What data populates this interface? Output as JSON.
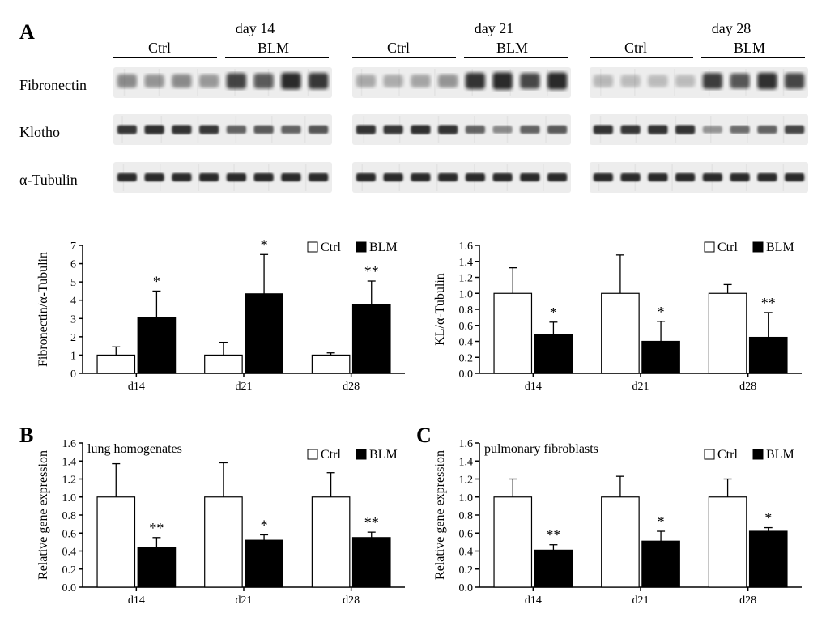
{
  "panelA": {
    "letter": "A",
    "days": [
      "day 14",
      "day 21",
      "day 28"
    ],
    "conditions": [
      "Ctrl",
      "BLM"
    ],
    "row_labels": [
      "Fibronectin",
      "Klotho",
      "α-Tubulin"
    ],
    "blot_colors": {
      "band": "#2b2b2b",
      "membrane": "#ededed",
      "streak": "#9a9a9a"
    },
    "chart_left": {
      "type": "bar",
      "ylabel": "Fibronectin/α-Tubulin",
      "ylim": [
        0,
        7
      ],
      "ytick_step": 1,
      "categories": [
        "d14",
        "d21",
        "d28"
      ],
      "legend": {
        "items": [
          "Ctrl",
          "BLM"
        ],
        "colors": [
          "#ffffff",
          "#000000"
        ]
      },
      "series": {
        "Ctrl": {
          "values": [
            1.0,
            1.0,
            1.0
          ],
          "errors": [
            0.45,
            0.7,
            0.12
          ],
          "color": "#ffffff"
        },
        "BLM": {
          "values": [
            3.05,
            4.35,
            3.75
          ],
          "errors": [
            1.45,
            2.15,
            1.3
          ],
          "color": "#000000",
          "sig": [
            "*",
            "*",
            "**"
          ]
        }
      },
      "bar_width": 0.35,
      "colors": {
        "axis": "#000000",
        "bg": "#ffffff"
      },
      "fontsize": {
        "tick": 14,
        "ylabel": 16,
        "sig": 18
      }
    },
    "chart_right": {
      "type": "bar",
      "ylabel": "KL/α-Tubulin",
      "ylim": [
        0,
        1.6
      ],
      "ytick_step": 0.2,
      "categories": [
        "d14",
        "d21",
        "d28"
      ],
      "legend": {
        "items": [
          "Ctrl",
          "BLM"
        ],
        "colors": [
          "#ffffff",
          "#000000"
        ]
      },
      "series": {
        "Ctrl": {
          "values": [
            1.0,
            1.0,
            1.0
          ],
          "errors": [
            0.32,
            0.48,
            0.11
          ],
          "color": "#ffffff"
        },
        "BLM": {
          "values": [
            0.48,
            0.4,
            0.45
          ],
          "errors": [
            0.16,
            0.25,
            0.31
          ],
          "color": "#000000",
          "sig": [
            "*",
            "*",
            "**"
          ]
        }
      },
      "bar_width": 0.35,
      "colors": {
        "axis": "#000000",
        "bg": "#ffffff"
      },
      "fontsize": {
        "tick": 14,
        "ylabel": 16,
        "sig": 18
      }
    }
  },
  "panelB": {
    "letter": "B",
    "subtitle": "lung homogenates",
    "type": "bar",
    "ylabel": "Relative gene expression",
    "ylim": [
      0,
      1.6
    ],
    "ytick_step": 0.2,
    "categories": [
      "d14",
      "d21",
      "d28"
    ],
    "legend": {
      "items": [
        "Ctrl",
        "BLM"
      ],
      "colors": [
        "#ffffff",
        "#000000"
      ]
    },
    "series": {
      "Ctrl": {
        "values": [
          1.0,
          1.0,
          1.0
        ],
        "errors": [
          0.37,
          0.38,
          0.27
        ],
        "color": "#ffffff"
      },
      "BLM": {
        "values": [
          0.44,
          0.52,
          0.55
        ],
        "errors": [
          0.11,
          0.06,
          0.06
        ],
        "color": "#000000",
        "sig": [
          "**",
          "*",
          "**"
        ]
      }
    },
    "bar_width": 0.35,
    "colors": {
      "axis": "#000000",
      "bg": "#ffffff"
    },
    "fontsize": {
      "tick": 14,
      "ylabel": 16,
      "sig": 18
    }
  },
  "panelC": {
    "letter": "C",
    "subtitle": "pulmonary fibroblasts",
    "type": "bar",
    "ylabel": "Relative gene expression",
    "ylim": [
      0,
      1.6
    ],
    "ytick_step": 0.2,
    "categories": [
      "d14",
      "d21",
      "d28"
    ],
    "legend": {
      "items": [
        "Ctrl",
        "BLM"
      ],
      "colors": [
        "#ffffff",
        "#000000"
      ]
    },
    "series": {
      "Ctrl": {
        "values": [
          1.0,
          1.0,
          1.0
        ],
        "errors": [
          0.2,
          0.23,
          0.2
        ],
        "color": "#ffffff"
      },
      "BLM": {
        "values": [
          0.41,
          0.51,
          0.62
        ],
        "errors": [
          0.06,
          0.11,
          0.04
        ],
        "color": "#000000",
        "sig": [
          "**",
          "*",
          "*"
        ]
      }
    },
    "bar_width": 0.35,
    "colors": {
      "axis": "#000000",
      "bg": "#ffffff"
    },
    "fontsize": {
      "tick": 14,
      "ylabel": 16,
      "sig": 18
    }
  }
}
